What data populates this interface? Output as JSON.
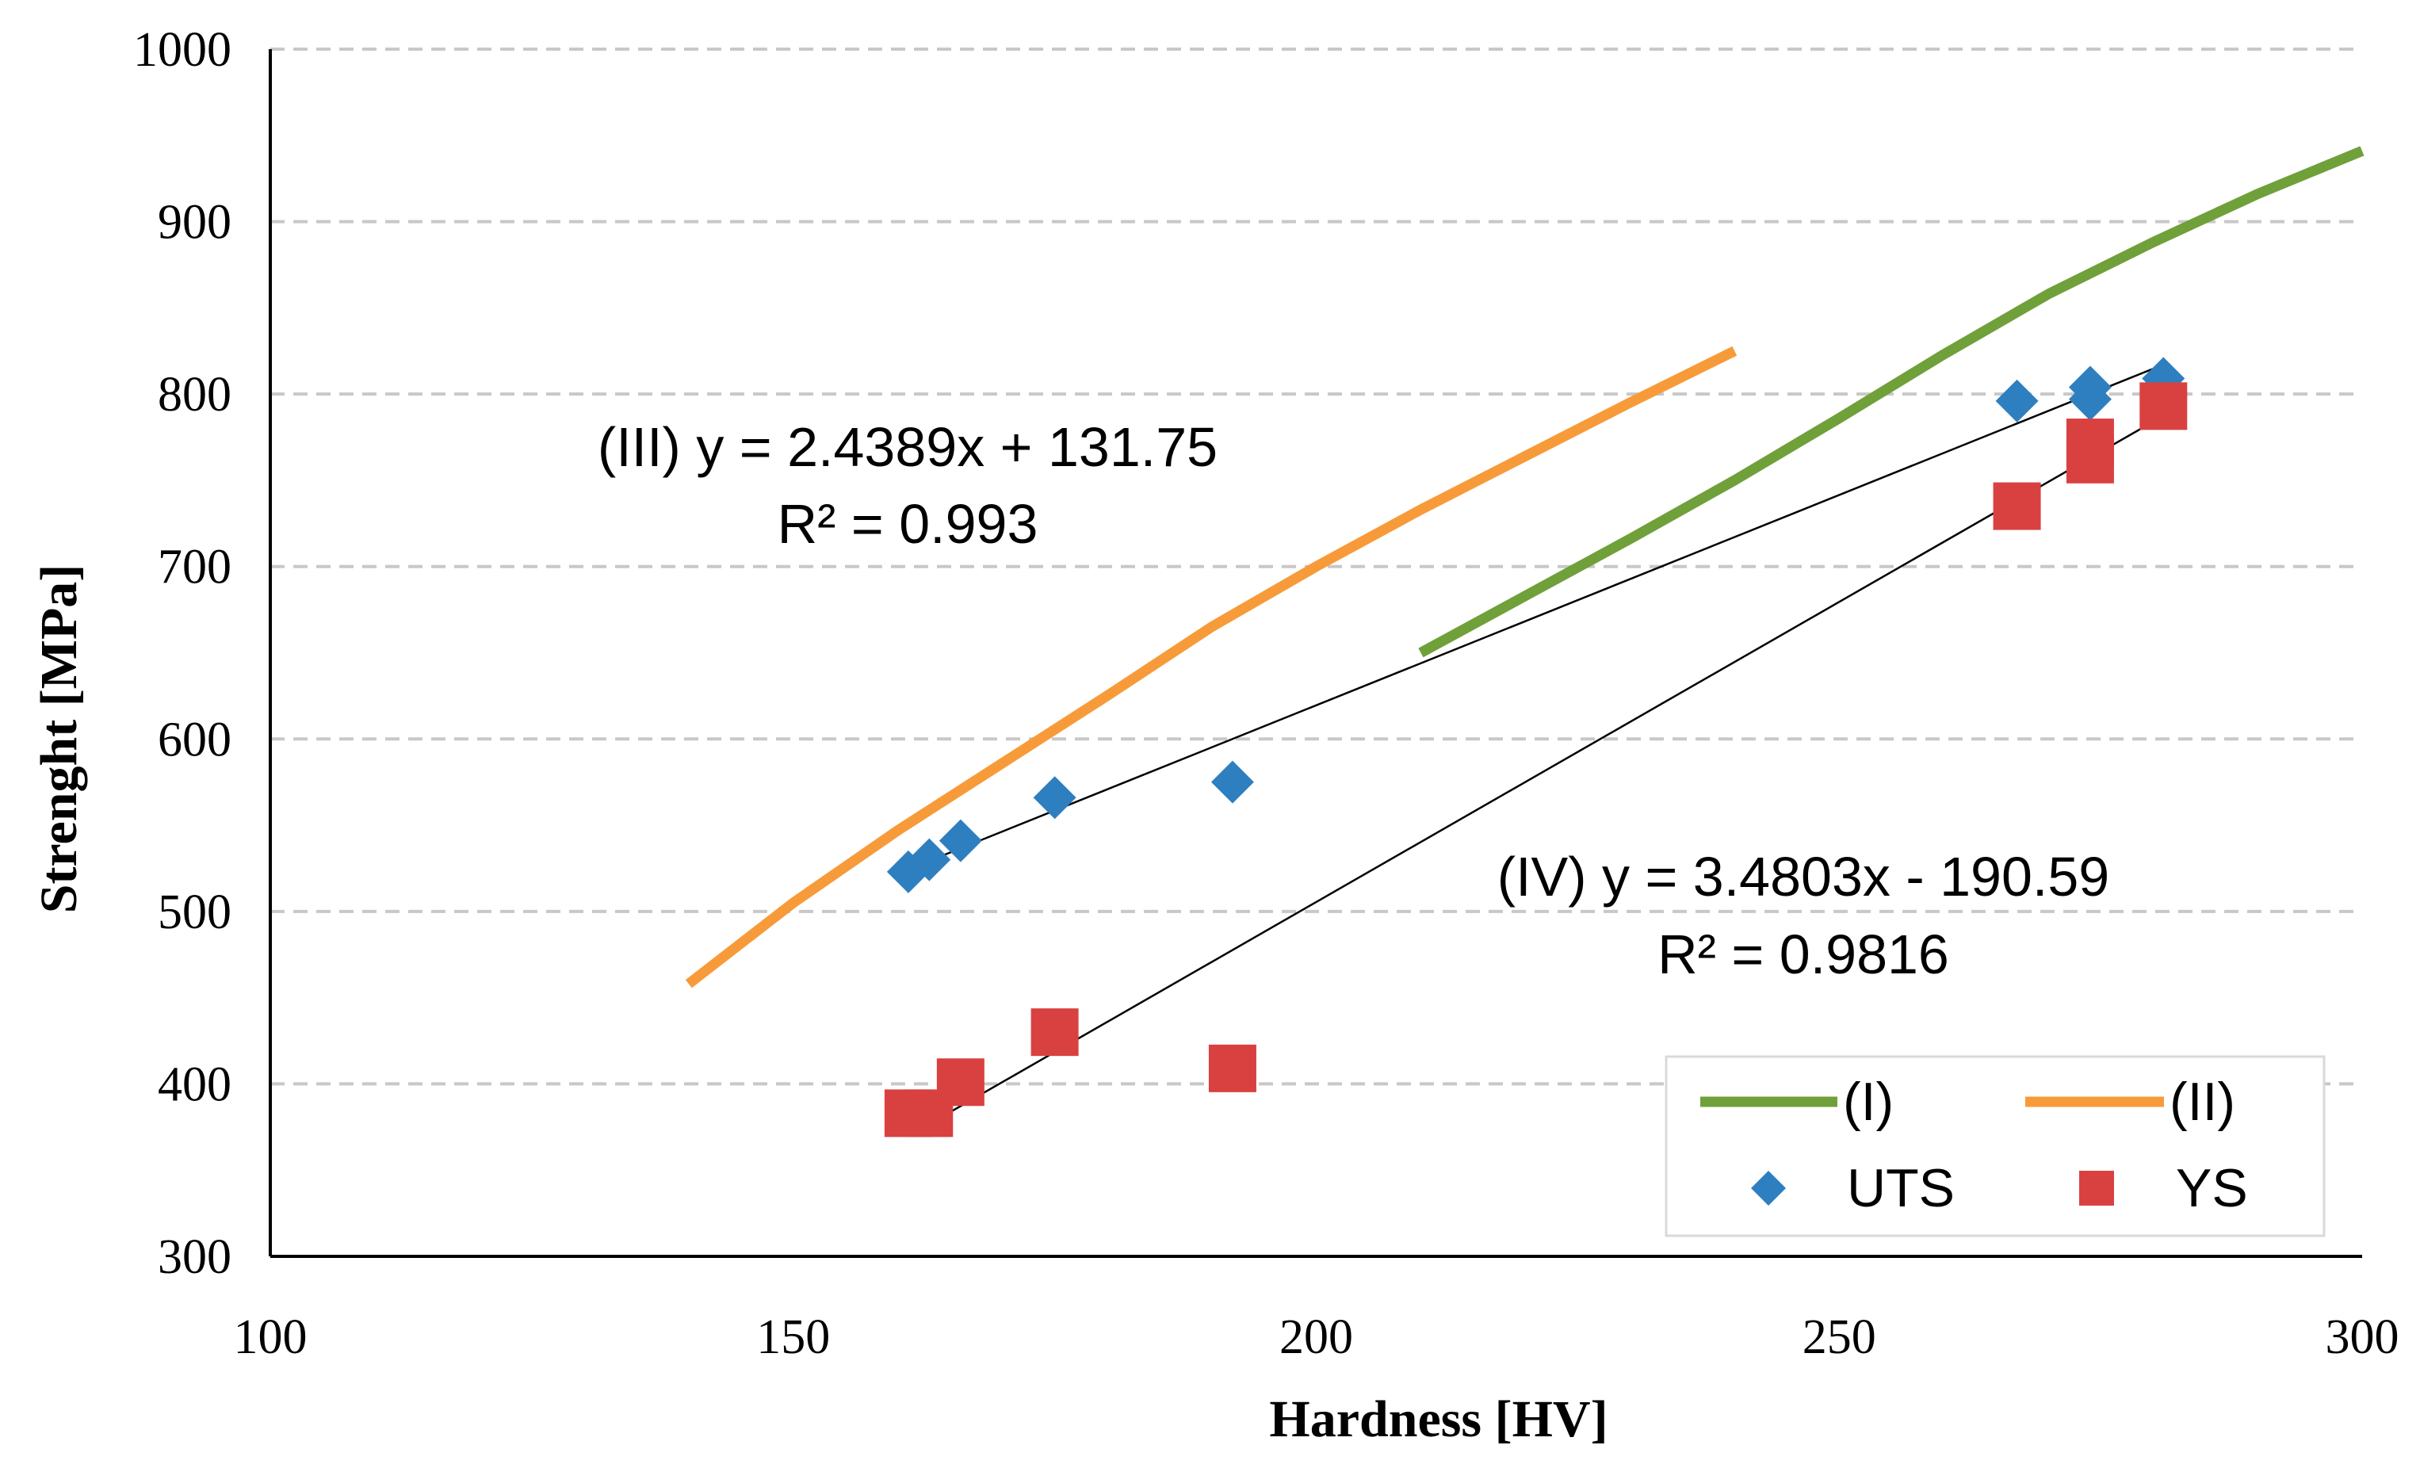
{
  "chart_data": {
    "type": "scatter",
    "title": "",
    "xlabel": "Hardness [HV]",
    "ylabel": "Strenght [MPa]",
    "xlim": [
      100,
      300
    ],
    "ylim": [
      300,
      1000
    ],
    "xticks": [
      100,
      150,
      200,
      250,
      300
    ],
    "yticks": [
      300,
      400,
      500,
      600,
      700,
      800,
      900,
      1000
    ],
    "grid": "horizontal dashed",
    "legend_position": "bottom-right",
    "colors": {
      "curve_I": "#70a03a",
      "curve_II": "#f79b3a",
      "uts": "#2e7fbf",
      "ys": "#d94141",
      "trendline": "#000000",
      "grid": "#c8c8c8",
      "axis": "#000000"
    },
    "series": [
      {
        "name": "(I)",
        "kind": "line",
        "x": [
          210,
          220,
          230,
          240,
          250,
          260,
          270,
          280,
          290,
          300
        ],
        "y": [
          650,
          683,
          716,
          750,
          786,
          823,
          858,
          888,
          916,
          941
        ]
      },
      {
        "name": "(II)",
        "kind": "line",
        "x": [
          140,
          150,
          160,
          170,
          180,
          190,
          200,
          210,
          220,
          230,
          240
        ],
        "y": [
          458,
          505,
          547,
          586,
          625,
          665,
          700,
          733,
          764,
          795,
          825
        ]
      },
      {
        "name": "UTS",
        "kind": "scatter",
        "marker": "diamond",
        "x": [
          161,
          163,
          166,
          175,
          192,
          267,
          274,
          274,
          281
        ],
        "y": [
          523,
          530,
          541,
          566,
          575,
          796,
          804,
          797,
          809
        ]
      },
      {
        "name": "YS",
        "kind": "scatter",
        "marker": "square",
        "x": [
          161,
          163,
          166,
          175,
          192,
          267,
          274,
          274,
          281
        ],
        "y": [
          383,
          383,
          401,
          430,
          409,
          735,
          762,
          772,
          793
        ]
      }
    ],
    "trendlines": [
      {
        "name": "(III)",
        "slope": 2.4389,
        "intercept": 131.75,
        "x_range": [
          161,
          281
        ]
      },
      {
        "name": "(IV)",
        "slope": 3.4803,
        "intercept": -190.59,
        "x_range": [
          161,
          281
        ]
      }
    ],
    "annotations": [
      {
        "line1": "(III) y = 2.4389x + 131.75",
        "line2": "R² = 0.993"
      },
      {
        "line1": "(IV) y = 3.4803x - 190.59",
        "line2": "R² = 0.9816"
      }
    ],
    "legend": [
      {
        "label": "(I)",
        "symbol": "line",
        "series": "curve_I"
      },
      {
        "label": "(II)",
        "symbol": "line",
        "series": "curve_II"
      },
      {
        "label": "UTS",
        "symbol": "diamond",
        "series": "uts"
      },
      {
        "label": "YS",
        "symbol": "square",
        "series": "ys"
      }
    ]
  }
}
